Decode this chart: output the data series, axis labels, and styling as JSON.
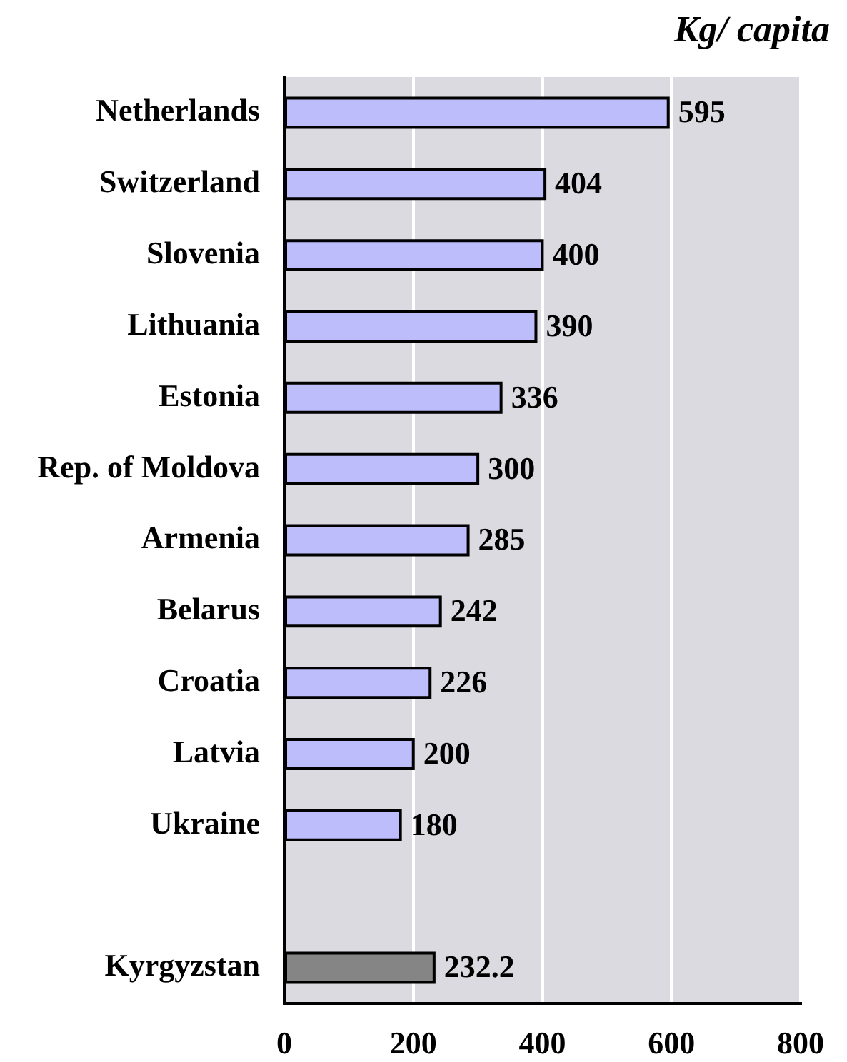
{
  "chart_data": {
    "type": "bar",
    "orientation": "horizontal",
    "xlabel": "Kg/ capita",
    "categories": [
      "Netherlands",
      "Switzerland",
      "Slovenia",
      "Lithuania",
      "Estonia",
      "Rep. of Moldova",
      "Armenia",
      "Belarus",
      "Croatia",
      "Latvia",
      "Ukraine",
      null,
      "Kyrgyzstan"
    ],
    "values": [
      595,
      404,
      400,
      390,
      336,
      300,
      285,
      242,
      226,
      200,
      180,
      null,
      232.2
    ],
    "colors": [
      "#bdbdfb",
      "#bdbdfb",
      "#bdbdfb",
      "#bdbdfb",
      "#bdbdfb",
      "#bdbdfb",
      "#bdbdfb",
      "#bdbdfb",
      "#bdbdfb",
      "#bdbdfb",
      "#bdbdfb",
      null,
      "#858585"
    ],
    "xlim": [
      0,
      800
    ],
    "xticks": [
      0,
      200,
      400,
      600,
      800
    ],
    "grid": "x",
    "data_labels": true
  }
}
